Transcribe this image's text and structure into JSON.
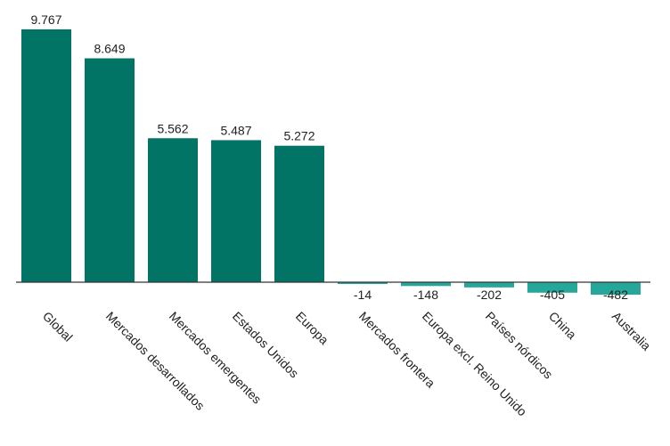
{
  "chart_data": {
    "type": "bar",
    "categories": [
      "Global",
      "Mercados desarrollados",
      "Mercados emergentes",
      "Estados Unidos",
      "Europa",
      "Mercados frontera",
      "Europa excl. Reino Unido",
      "Países nórdicos",
      "China",
      "Australia"
    ],
    "values": [
      9767,
      8649,
      5562,
      5487,
      5272,
      -14,
      -148,
      -202,
      -405,
      -482
    ],
    "value_labels": [
      "9.767",
      "8.649",
      "5.562",
      "5.487",
      "5.272",
      "-14",
      "-148",
      "-202",
      "-405",
      "-482"
    ],
    "title": "",
    "xlabel": "",
    "ylabel": "",
    "grid": false,
    "legend": "none",
    "colors": {
      "positive": "#027466",
      "negative": "#25a799",
      "axis": "#333333",
      "text": "#222222"
    }
  }
}
